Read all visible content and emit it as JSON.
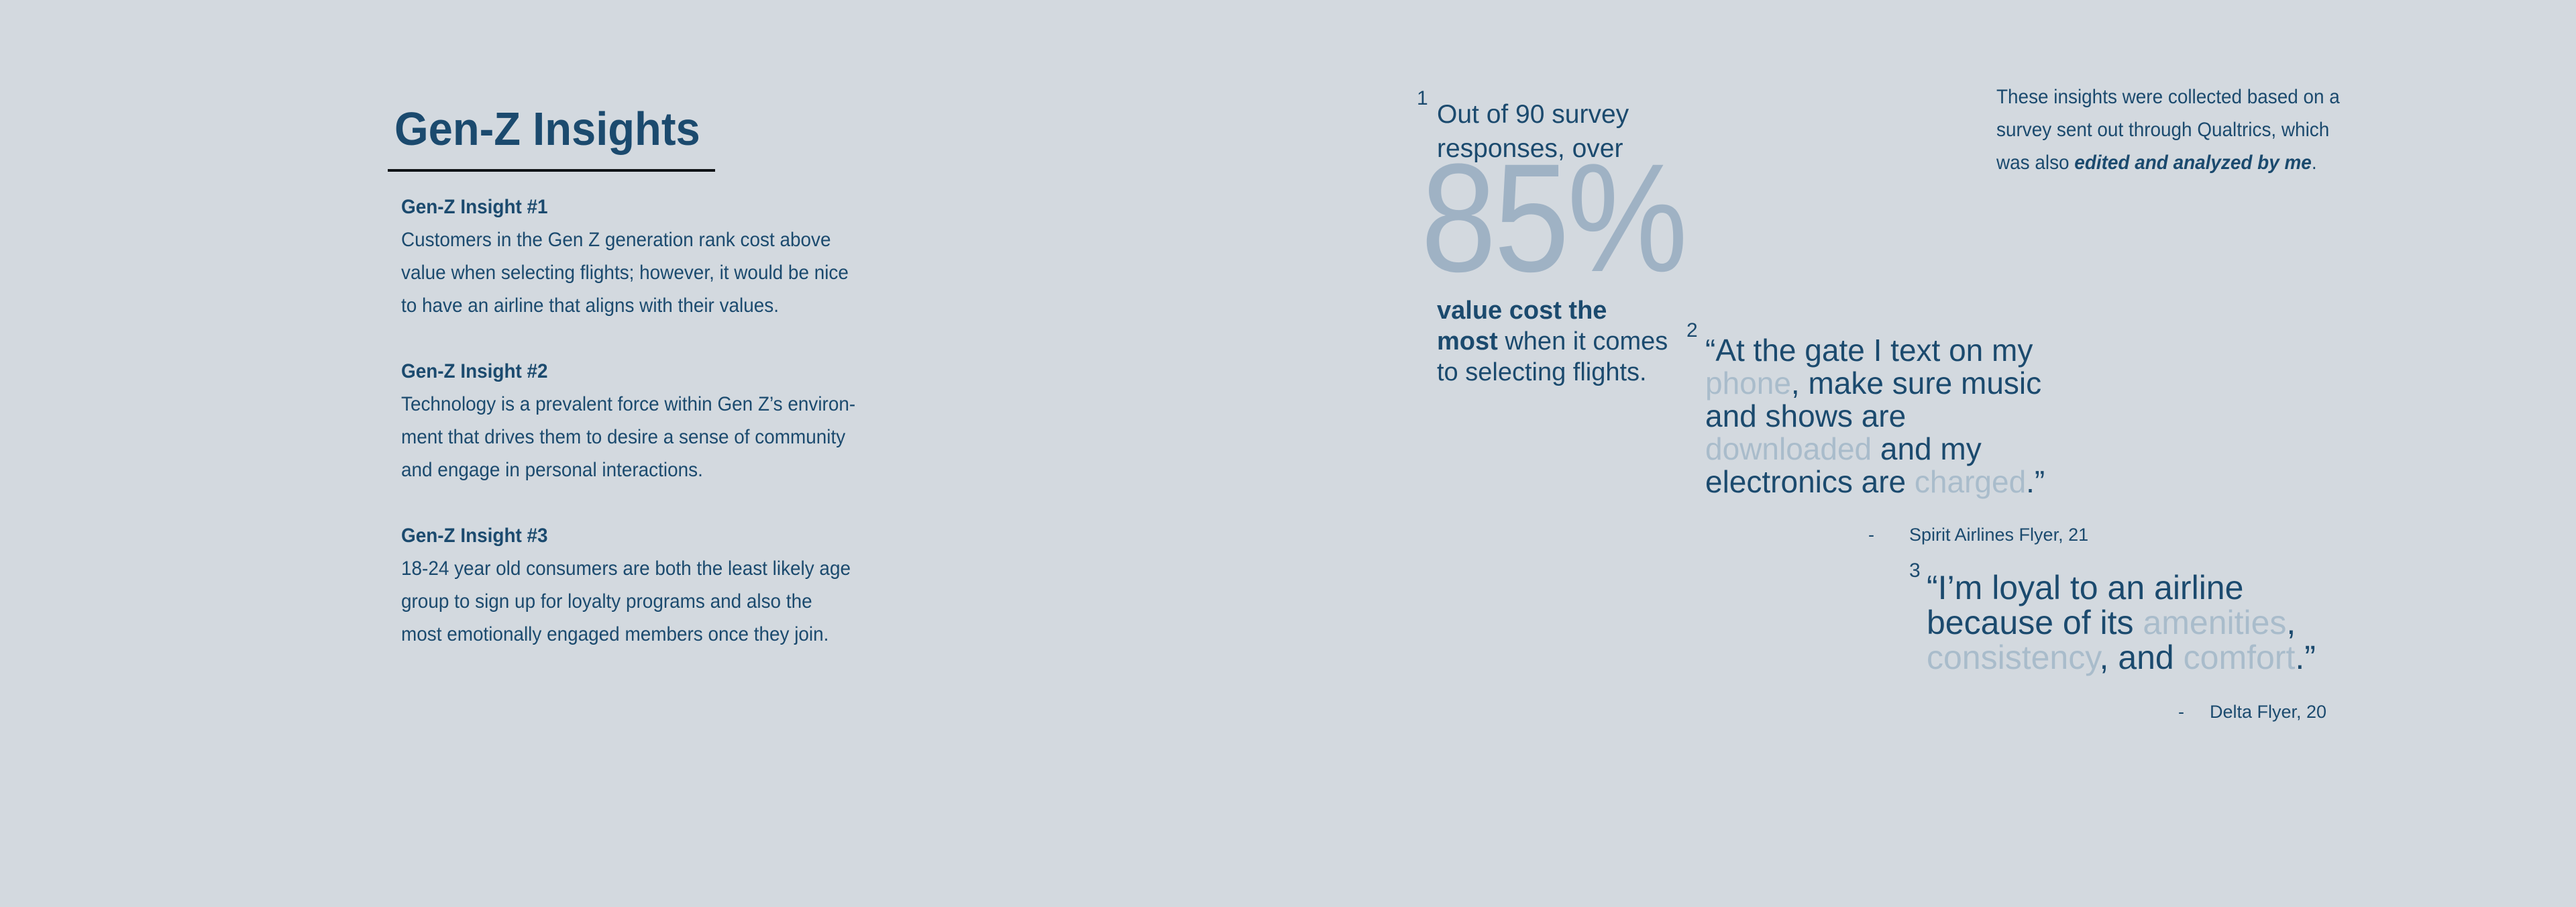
{
  "colors": {
    "background": "#d3d9df",
    "navy": "#1b4a6e",
    "stat": "#9fb2c4",
    "highlight": "#a9bccb",
    "underline": "#101417"
  },
  "title": {
    "text": "Gen-Z Insights"
  },
  "insights": [
    {
      "heading": "Gen-Z Insight #1",
      "body_lines": [
        "Customers in the Gen Z generation rank cost above",
        "value when selecting flights; however, it would be nice",
        "to have an airline that aligns with their values."
      ]
    },
    {
      "heading": "Gen-Z Insight #2",
      "body_lines": [
        "Technology is a prevalent force within Gen Z’s environ-",
        "ment that drives them to desire a sense of community",
        "and engage in personal interactions."
      ]
    },
    {
      "heading": "Gen-Z Insight #3",
      "body_lines": [
        "18-24 year old consumers are both the least likely age",
        "group to sign up for loyalty programs and also the",
        "most emotionally engaged members once they join."
      ]
    }
  ],
  "stat": {
    "number_label": "1",
    "intro_lines": [
      "Out of 90 survey",
      "responses, over"
    ],
    "big_value": "85%",
    "outro_lines": [
      [
        {
          "text": "value cost the",
          "bold": true
        }
      ],
      [
        {
          "text": "most",
          "bold": true
        },
        {
          "text": " when it comes"
        }
      ],
      [
        {
          "text": "to selecting flights."
        }
      ]
    ]
  },
  "note": {
    "lines": [
      [
        {
          "text": "These insights were collected based on a"
        }
      ],
      [
        {
          "text": "survey sent out through Qualtrics, which"
        }
      ],
      [
        {
          "text": "was also "
        },
        {
          "text": "edited and analyzed by me",
          "em": true
        },
        {
          "text": "."
        }
      ]
    ]
  },
  "quotes": [
    {
      "number_label": "2",
      "lines": [
        [
          {
            "text": "“At the gate I text on my"
          }
        ],
        [
          {
            "text": "phone",
            "highlight": true
          },
          {
            "text": ", make sure music"
          }
        ],
        [
          {
            "text": "and shows are"
          }
        ],
        [
          {
            "text": "downloaded",
            "highlight": true
          },
          {
            "text": " and my"
          }
        ],
        [
          {
            "text": "electronics are "
          },
          {
            "text": "charged",
            "highlight": true
          },
          {
            "text": ".”"
          }
        ]
      ],
      "dash": "-",
      "attribution": "Spirit Airlines Flyer, 21"
    },
    {
      "number_label": "3",
      "lines": [
        [
          {
            "text": "“I’m loyal to an airline"
          }
        ],
        [
          {
            "text": "because of its "
          },
          {
            "text": "amenities",
            "highlight": true
          },
          {
            "text": ","
          }
        ],
        [
          {
            "text": "consistency",
            "highlight": true
          },
          {
            "text": ", and "
          },
          {
            "text": "comfort",
            "highlight": true
          },
          {
            "text": ".”"
          }
        ]
      ],
      "dash": "-",
      "attribution": "Delta Flyer, 20"
    }
  ]
}
